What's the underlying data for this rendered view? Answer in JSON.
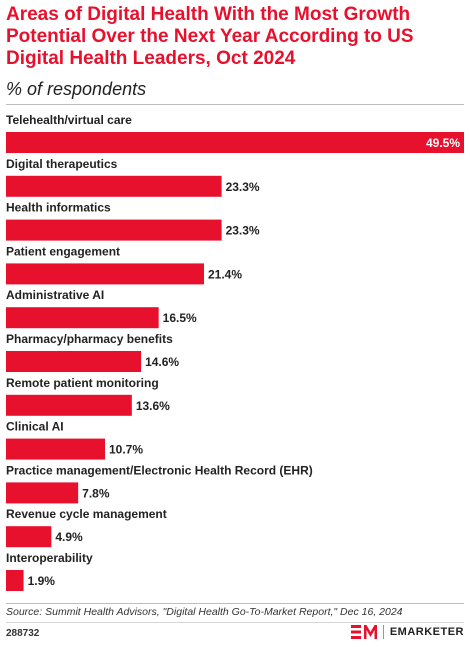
{
  "header": {
    "title": "Areas of Digital Health With the Most Growth Potential Over the Next Year According to US Digital Health Leaders, Oct 2024",
    "subtitle": "% of respondents"
  },
  "footer": {
    "source": "Source: Summit Health Advisors, \"Digital Health Go-To-Market Report,\" Dec 16, 2024",
    "chart_id": "288732",
    "brand_mark": "EM",
    "brand_name": "EMARKETER"
  },
  "colors": {
    "bar": "#e8112d",
    "title": "#e8112d",
    "inside_label": "#ffffff",
    "outside_label": "#222222"
  },
  "chart_data": {
    "type": "bar",
    "orientation": "horizontal",
    "title": "Areas of Digital Health With the Most Growth Potential Over the Next Year According to US Digital Health Leaders, Oct 2024",
    "subtitle": "% of respondents",
    "xlabel": "",
    "ylabel": "",
    "xlim": [
      0,
      49.5
    ],
    "grid": false,
    "legend": "none",
    "categories": [
      "Telehealth/virtual care",
      "Digital therapeutics",
      "Health informatics",
      "Patient engagement",
      "Administrative AI",
      "Pharmacy/pharmacy benefits",
      "Remote patient monitoring",
      "Clinical AI",
      "Practice management/Electronic Health Record (EHR)",
      "Revenue cycle management",
      "Interoperability"
    ],
    "values": [
      49.5,
      23.3,
      23.3,
      21.4,
      16.5,
      14.6,
      13.6,
      10.7,
      7.8,
      4.9,
      1.9
    ],
    "value_labels": [
      "49.5%",
      "23.3%",
      "23.3%",
      "21.4%",
      "16.5%",
      "14.6%",
      "13.6%",
      "10.7%",
      "7.8%",
      "4.9%",
      "1.9%"
    ]
  }
}
